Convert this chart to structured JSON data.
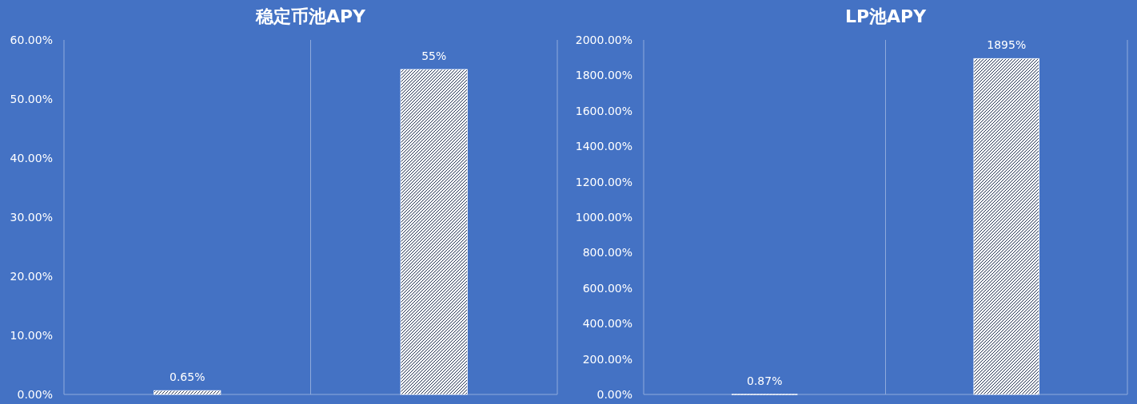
{
  "chart_data": [
    {
      "type": "bar",
      "title": "稳定币池APY",
      "categories": [
        null,
        null
      ],
      "series": [
        {
          "color": "#ffffff",
          "values": [
            0.65,
            55
          ]
        }
      ],
      "value_labels": [
        "0.65%",
        "55%"
      ],
      "ylim": [
        0,
        60
      ],
      "yticks": [
        {
          "value": 0,
          "label": "0.00%"
        },
        {
          "value": 10,
          "label": "10.00%"
        },
        {
          "value": 20,
          "label": "20.00%"
        },
        {
          "value": 30,
          "label": "30.00%"
        },
        {
          "value": 40,
          "label": "40.00%"
        },
        {
          "value": 50,
          "label": "50.00%"
        },
        {
          "value": 60,
          "label": "60.00%"
        }
      ]
    },
    {
      "type": "bar",
      "title": "LP池APY",
      "categories": [
        null,
        null
      ],
      "series": [
        {
          "color": "#ffffff",
          "values": [
            0.87,
            1895
          ]
        }
      ],
      "value_labels": [
        "0.87%",
        "1895%"
      ],
      "ylim": [
        0,
        2000
      ],
      "yticks": [
        {
          "value": 0,
          "label": "0.00%"
        },
        {
          "value": 200,
          "label": "200.00%"
        },
        {
          "value": 400,
          "label": "400.00%"
        },
        {
          "value": 600,
          "label": "600.00%"
        },
        {
          "value": 800,
          "label": "800.00%"
        },
        {
          "value": 1000,
          "label": "1000.00%"
        },
        {
          "value": 1200,
          "label": "1200.00%"
        },
        {
          "value": 1400,
          "label": "1400.00%"
        },
        {
          "value": 1600,
          "label": "1600.00%"
        },
        {
          "value": 1800,
          "label": "1800.00%"
        },
        {
          "value": 2000,
          "label": "2000.00%"
        }
      ]
    }
  ]
}
